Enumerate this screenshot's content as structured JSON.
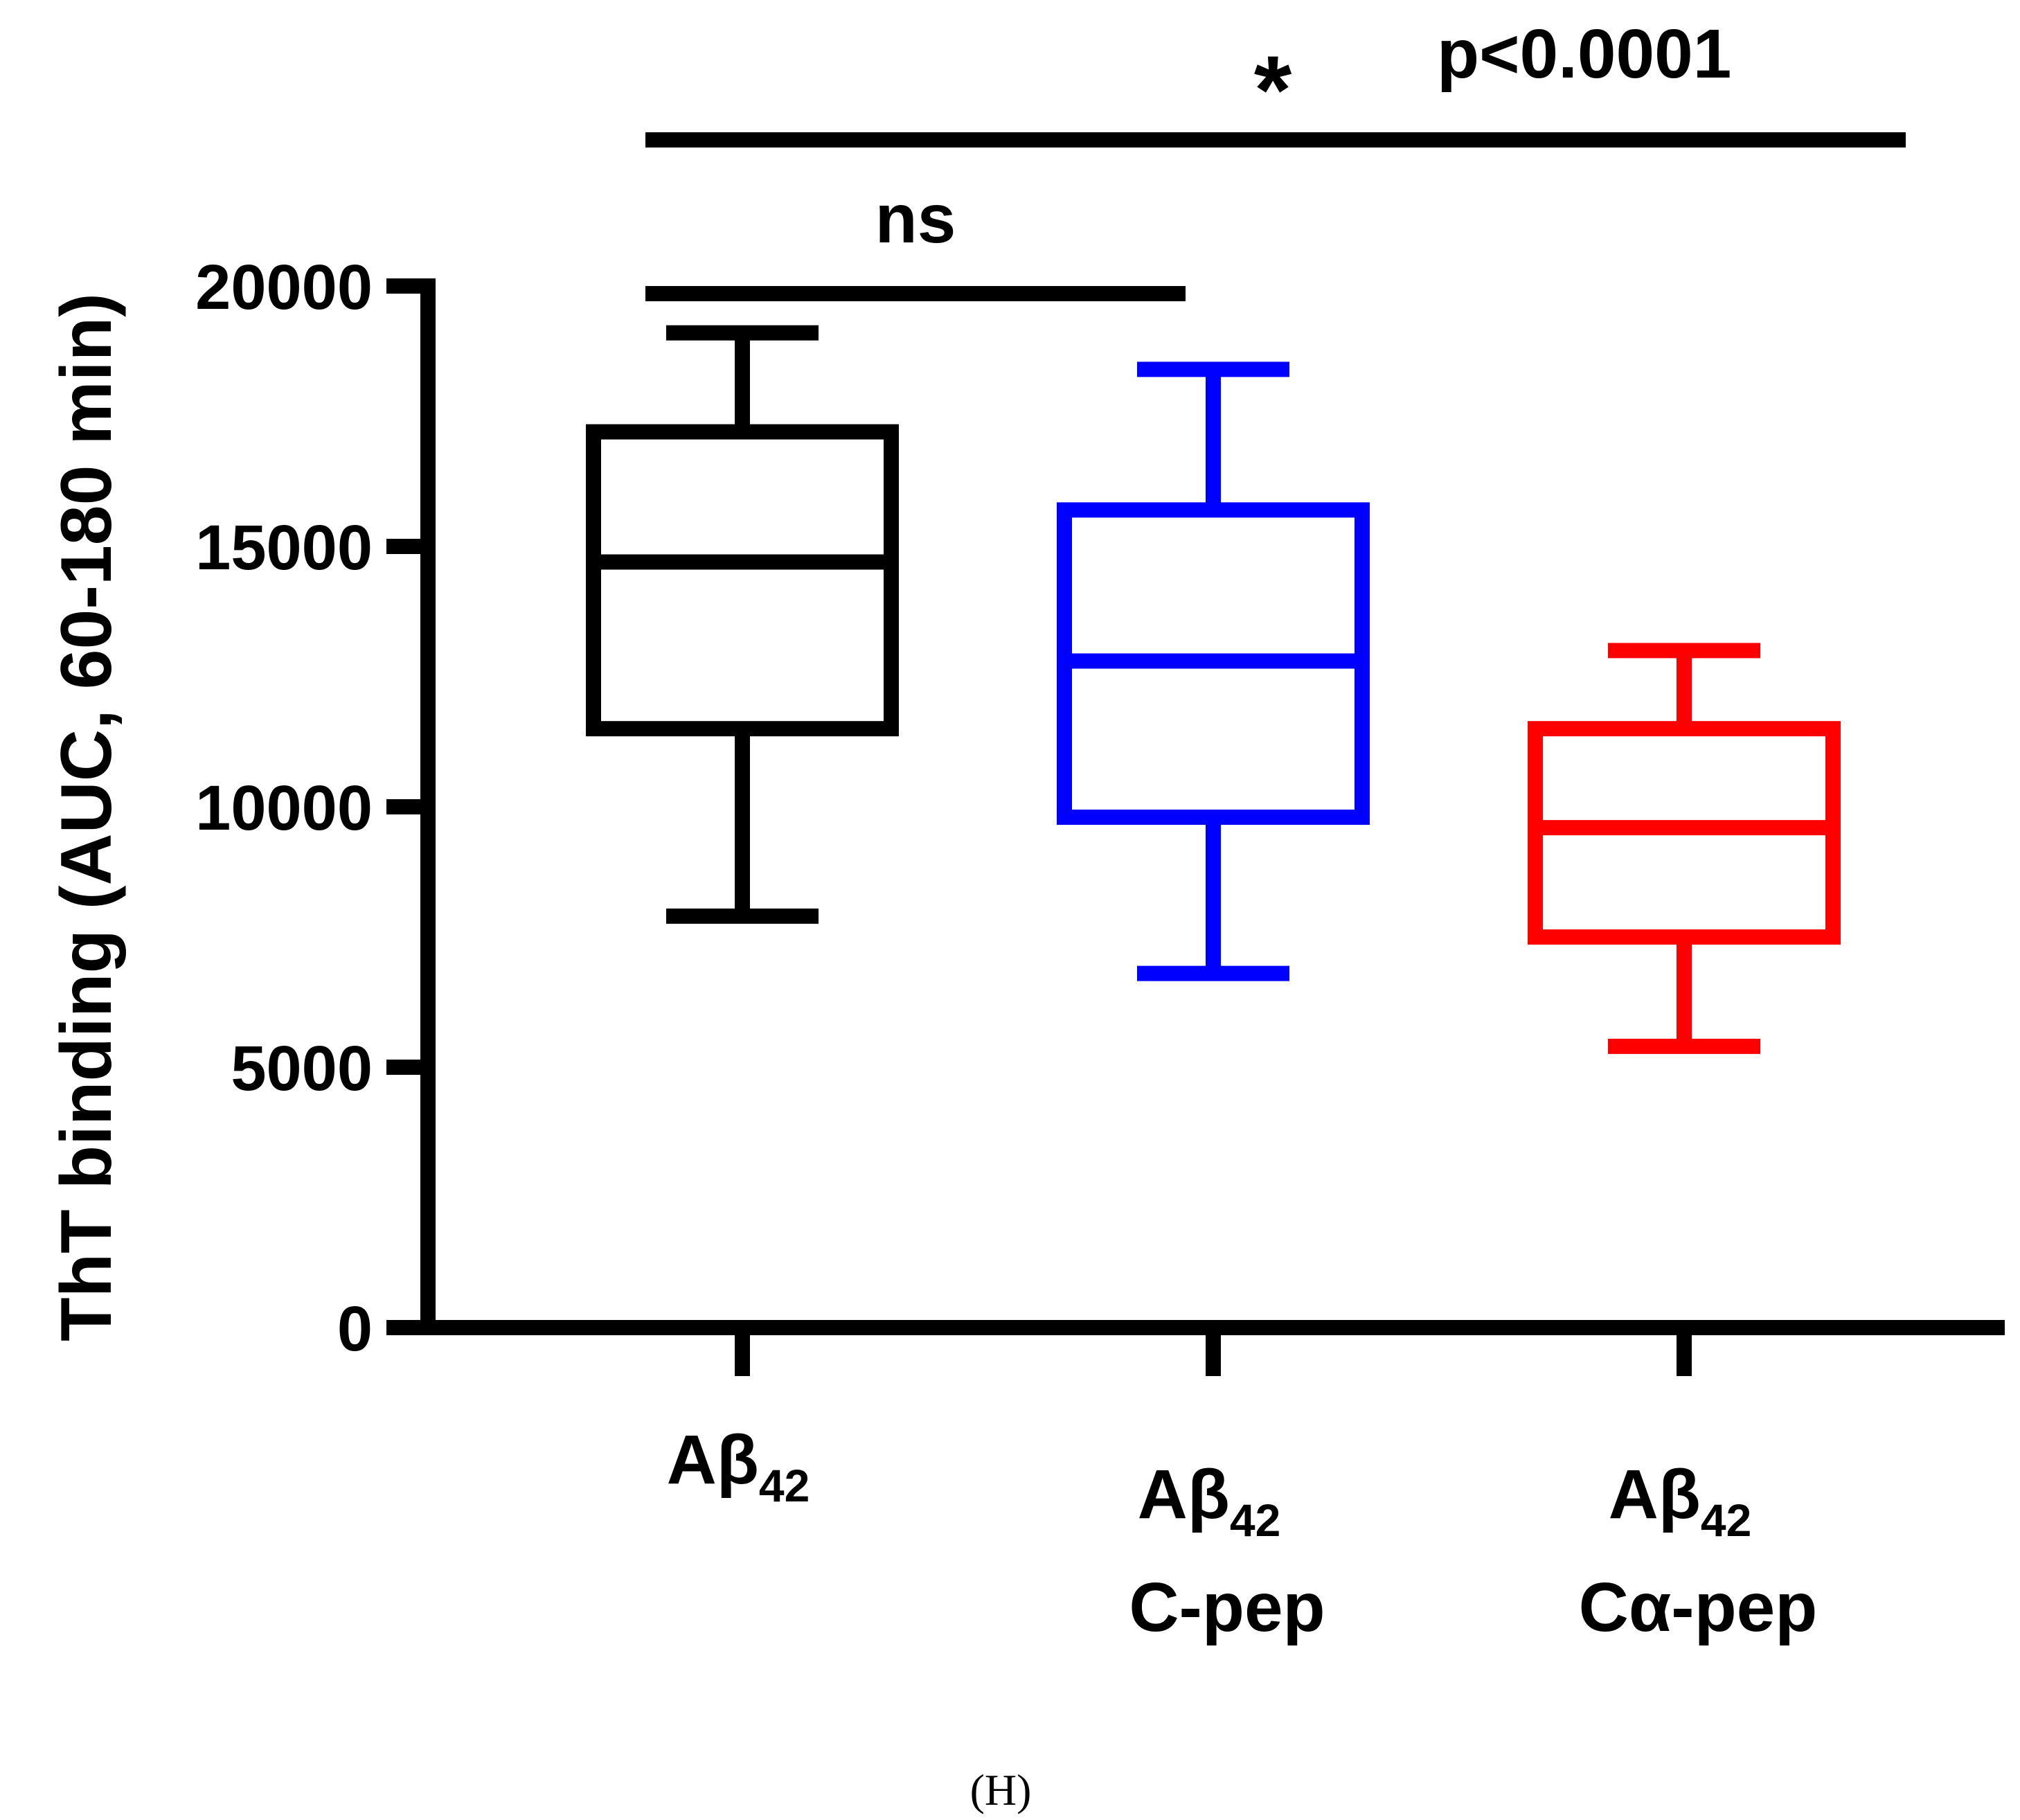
{
  "chart_data": {
    "type": "box",
    "title": "",
    "xlabel": "",
    "ylabel": "ThT binding (AUC, 60-180 min)",
    "ylim": [
      0,
      20000
    ],
    "yticks": [
      0,
      5000,
      10000,
      15000,
      20000
    ],
    "yticklabels": [
      "0",
      "5000",
      "10000",
      "15000",
      "20000"
    ],
    "categories": [
      {
        "main": "Aβ",
        "sub": "42",
        "line2": ""
      },
      {
        "main": "Aβ",
        "sub": "42",
        "line2": "C-pep"
      },
      {
        "main": "Aβ",
        "sub": "42",
        "line2": "Cα-pep"
      }
    ],
    "series": [
      {
        "name": "Aβ42",
        "color": "#000000",
        "min": 7900,
        "q1": 11500,
        "median": 14700,
        "q3": 17200,
        "max": 19100
      },
      {
        "name": "Aβ42 C-pep",
        "color": "#0000ff",
        "min": 6800,
        "q1": 9800,
        "median": 12800,
        "q3": 15700,
        "max": 18400
      },
      {
        "name": "Aβ42 Cα-pep",
        "color": "#ff0000",
        "min": 5400,
        "q1": 7500,
        "median": 9600,
        "q3": 11500,
        "max": 13000
      }
    ],
    "annotations": [
      {
        "from": 0,
        "to": 1,
        "label": "ns"
      },
      {
        "from": 0,
        "to": 2,
        "label": "*",
        "extra": "p<0.0001"
      }
    ],
    "panel_label": "(H)"
  }
}
